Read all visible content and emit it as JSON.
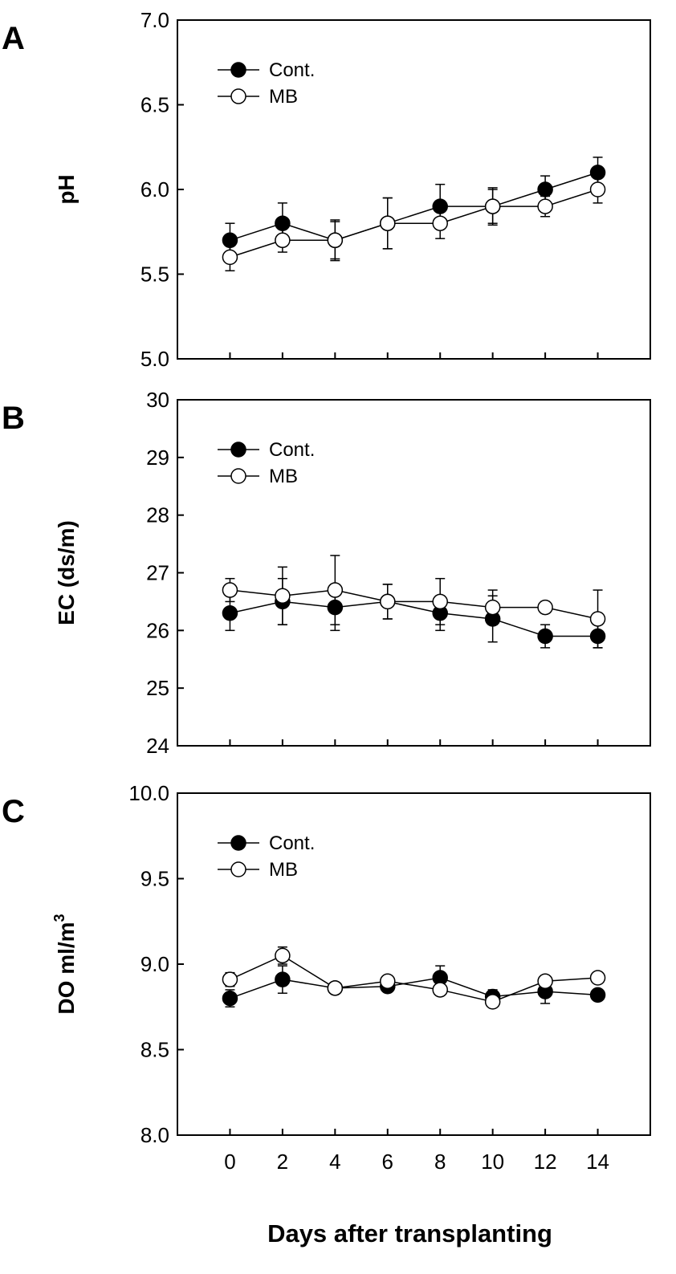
{
  "chart_data": [
    {
      "type": "line",
      "panel_label": "A",
      "ylabel": "pH",
      "xlabel": "",
      "x": [
        0,
        2,
        4,
        6,
        8,
        10,
        12,
        14
      ],
      "xlim": [
        -2,
        16
      ],
      "ylim": [
        5.0,
        7.0
      ],
      "yticks": [
        "5.0",
        "5.5",
        "6.0",
        "6.5",
        "7.0"
      ],
      "xticks": [],
      "grid": false,
      "legend_position": "top-left",
      "series": [
        {
          "name": "Cont.",
          "marker": "filled-circle",
          "values": [
            5.7,
            5.8,
            5.7,
            5.8,
            5.9,
            5.9,
            6.0,
            6.1
          ],
          "errors": [
            0.1,
            0.12,
            0.11,
            0.15,
            0.13,
            0.11,
            0.08,
            0.09
          ]
        },
        {
          "name": "MB",
          "marker": "open-circle",
          "values": [
            5.6,
            5.7,
            5.7,
            5.8,
            5.8,
            5.9,
            5.9,
            6.0
          ],
          "errors": [
            0.08,
            0.07,
            0.12,
            0.15,
            0.09,
            0.1,
            0.06,
            0.08
          ]
        }
      ]
    },
    {
      "type": "line",
      "panel_label": "B",
      "ylabel": "EC (ds/m)",
      "xlabel": "",
      "x": [
        0,
        2,
        4,
        6,
        8,
        10,
        12,
        14
      ],
      "xlim": [
        -2,
        16
      ],
      "ylim": [
        24,
        30
      ],
      "yticks": [
        "24",
        "25",
        "26",
        "27",
        "28",
        "29",
        "30"
      ],
      "xticks": [],
      "grid": false,
      "legend_position": "top-left",
      "series": [
        {
          "name": "Cont.",
          "marker": "filled-circle",
          "values": [
            26.3,
            26.5,
            26.4,
            26.5,
            26.3,
            26.2,
            25.9,
            25.9
          ],
          "errors": [
            0.3,
            0.4,
            0.4,
            0.3,
            0.3,
            0.4,
            0.2,
            0.2
          ]
        },
        {
          "name": "MB",
          "marker": "open-circle",
          "values": [
            26.7,
            26.6,
            26.7,
            26.5,
            26.5,
            26.4,
            26.4,
            26.2
          ],
          "errors": [
            0.2,
            0.5,
            0.6,
            0.3,
            0.4,
            0.3,
            0.1,
            0.5
          ]
        }
      ]
    },
    {
      "type": "line",
      "panel_label": "C",
      "ylabel": "DO ml/m",
      "ylabel_superscript": "3",
      "xlabel": "Days after transplanting",
      "x": [
        0,
        2,
        4,
        6,
        8,
        10,
        12,
        14
      ],
      "xlim": [
        -2,
        16
      ],
      "ylim": [
        8.0,
        10.0
      ],
      "yticks": [
        "8.0",
        "8.5",
        "9.0",
        "9.5",
        "10.0"
      ],
      "xticks": [
        "0",
        "2",
        "4",
        "6",
        "8",
        "10",
        "12",
        "14"
      ],
      "grid": false,
      "legend_position": "top-left",
      "series": [
        {
          "name": "Cont.",
          "marker": "filled-circle",
          "values": [
            8.8,
            8.91,
            8.86,
            8.87,
            8.92,
            8.81,
            8.84,
            8.82
          ],
          "errors": [
            0.05,
            0.08,
            0.02,
            0.03,
            0.07,
            0.04,
            0.07,
            0.02
          ]
        },
        {
          "name": "MB",
          "marker": "open-circle",
          "values": [
            8.91,
            9.05,
            8.86,
            8.9,
            8.85,
            8.78,
            8.9,
            8.92
          ],
          "errors": [
            0.04,
            0.05,
            0.02,
            0.02,
            0.02,
            0.02,
            0.02,
            0.02
          ]
        }
      ]
    }
  ]
}
